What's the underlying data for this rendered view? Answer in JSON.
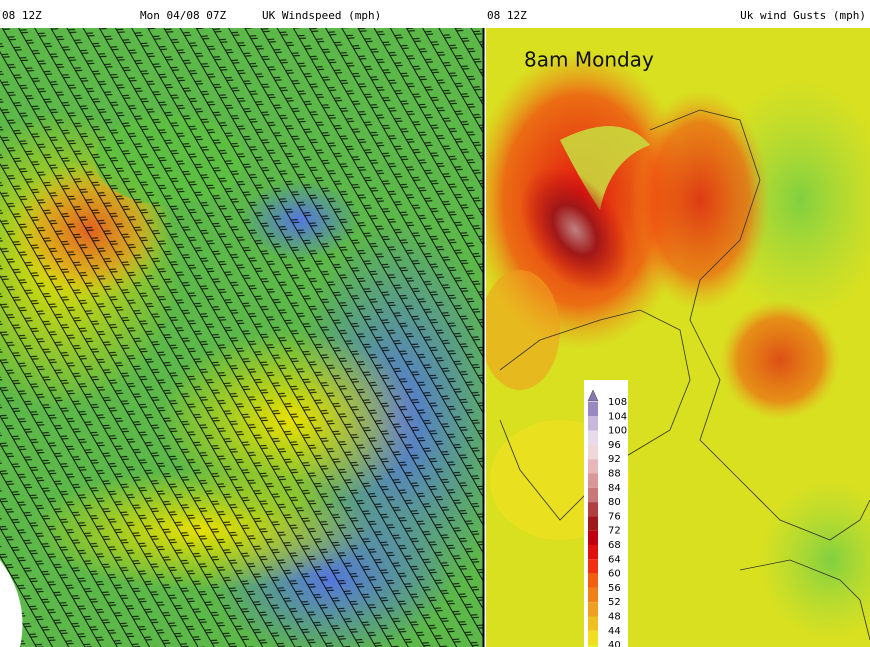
{
  "left_panel": {
    "header_left": "08 12Z",
    "header_center": "Mon 04/08 07Z",
    "header_right": "UK Windspeed (mph)"
  },
  "right_panel": {
    "header_left": "08 12Z",
    "header_right": "Uk wind Gusts (mph)",
    "overlay_label": "8am Monday",
    "legend": {
      "labels": [
        108,
        104,
        100,
        96,
        92,
        88,
        84,
        80,
        76,
        72,
        68,
        64,
        60,
        56,
        52,
        48,
        44,
        40
      ]
    }
  }
}
